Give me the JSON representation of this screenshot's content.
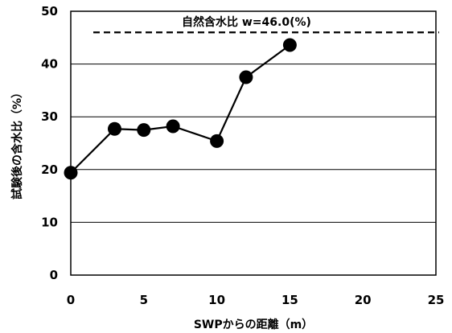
{
  "chart_data": {
    "type": "line",
    "xlabel": "SWPからの距離（m）",
    "ylabel": "試験後の含水比（%）",
    "xlim": [
      0,
      25
    ],
    "ylim": [
      0,
      50
    ],
    "x_ticks": [
      0,
      5,
      10,
      15,
      20,
      25
    ],
    "y_ticks": [
      0,
      10,
      20,
      30,
      40,
      50
    ],
    "grid": "horizontal",
    "legend": "none",
    "series": [
      {
        "x": [
          0,
          3,
          5,
          7,
          10,
          12,
          15
        ],
        "y": [
          19.4,
          27.7,
          27.5,
          28.2,
          25.4,
          37.5,
          43.6
        ],
        "color": "#000000",
        "marker": "circle"
      }
    ],
    "reference_line": {
      "y": 46.0,
      "style": "dashed",
      "label": "自然含水比 w=46.0(%)"
    }
  },
  "colors": {
    "line": "#000000",
    "grid": "#000000",
    "background": "#ffffff"
  }
}
